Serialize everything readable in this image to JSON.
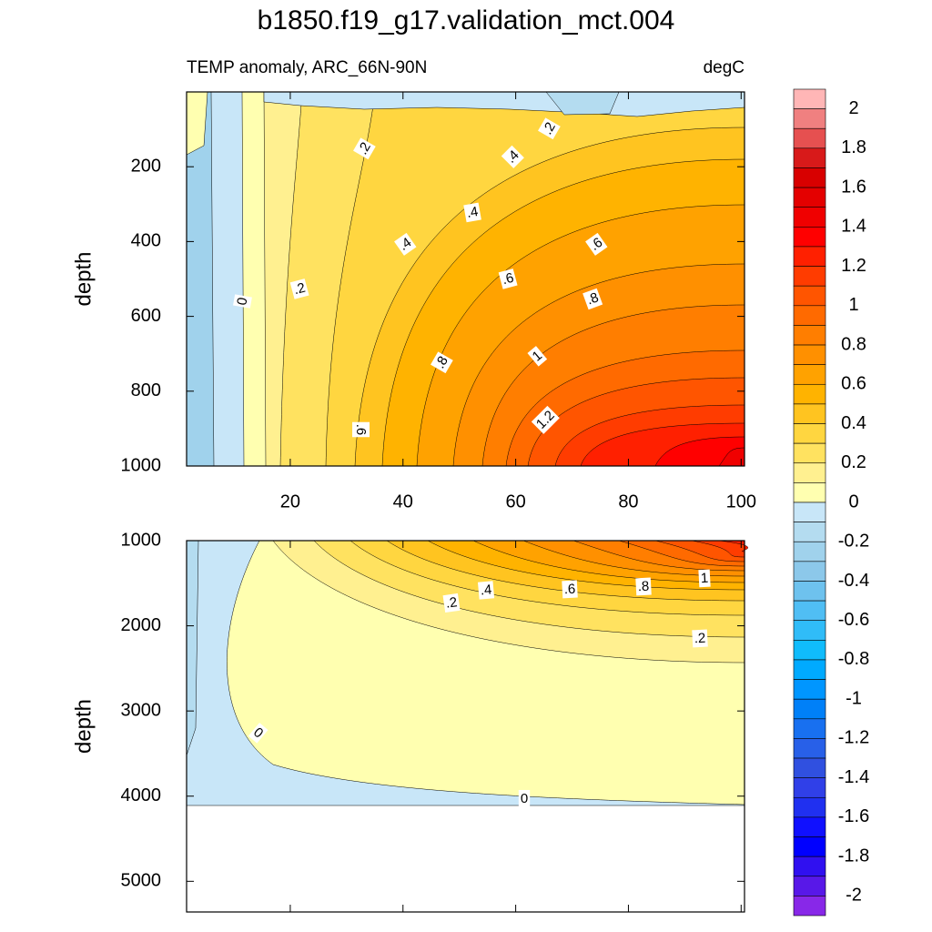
{
  "title": "b1850.f19_g17.validation_mct.004",
  "colorbar": {
    "lim": [
      -2.1,
      2.1
    ],
    "ticks": [
      2,
      1.8,
      1.6,
      1.4,
      1.2,
      1,
      0.8,
      0.6,
      0.4,
      0.2,
      0,
      -0.2,
      -0.4,
      -0.6,
      -0.8,
      -1,
      -1.2,
      -1.4,
      -1.6,
      -1.8,
      -2
    ],
    "colors": [
      "#ffb6b6",
      "#f08080",
      "#e65050",
      "#d81a1a",
      "#d80000",
      "#e40000",
      "#f00000",
      "#ff0000",
      "#ff2000",
      "#ff3c00",
      "#ff5500",
      "#ff6a00",
      "#ff7e00",
      "#ff9000",
      "#ffa200",
      "#ffb300",
      "#ffc420",
      "#ffd640",
      "#ffe260",
      "#fff090",
      "#ffffb0",
      "#c8e6f8",
      "#b4dcf0",
      "#a0d2ec",
      "#8cc8ea",
      "#6ec2ee",
      "#50bef4",
      "#30bcf8",
      "#10bcfc",
      "#00aaff",
      "#0096ff",
      "#0080f8",
      "#1870f0",
      "#2860e8",
      "#3050e0",
      "#3040e8",
      "#2030f0",
      "#1010ff",
      "#0000ff",
      "#3010f0",
      "#5818e8",
      "#8828e8"
    ]
  },
  "chart_data": [
    {
      "type": "contour",
      "subtitle_left": "TEMP anomaly, ARC_66N-90N",
      "subtitle_right": "degC",
      "y_label": "depth",
      "xlim": [
        1.6,
        100.6
      ],
      "xticks": [
        20,
        40,
        60,
        80,
        100
      ],
      "show_xtick_labels": true,
      "ylim": [
        0,
        1000
      ],
      "yticks": [
        200,
        400,
        600,
        800,
        1000
      ],
      "y_reversed": true,
      "contour_labels": [
        {
          "value": 0.2,
          "label": ".2"
        },
        {
          "value": 0.2,
          "label": ".2"
        },
        {
          "value": 0.4,
          "label": ".4"
        },
        {
          "value": 0.4,
          "label": ".4"
        },
        {
          "value": 0.4,
          "label": ".4"
        },
        {
          "value": 0.6,
          "label": ".6"
        },
        {
          "value": 0.2,
          "label": ".2"
        },
        0,
        {
          "value": 0.6,
          "label": ".6"
        },
        {
          "value": 0.8,
          "label": ".8"
        },
        {
          "value": 0.8,
          "label": ".8"
        },
        1,
        1.2,
        {
          "value": 0.6,
          "label": ".6"
        }
      ]
    },
    {
      "type": "contour",
      "y_label": "depth",
      "xlim": [
        1.6,
        100.6
      ],
      "xticks": [
        20,
        40,
        60,
        80,
        100
      ],
      "show_xtick_labels": false,
      "ylim": [
        1000,
        5360
      ],
      "yticks": [
        1000,
        2000,
        3000,
        4000,
        5000
      ],
      "y_reversed": true,
      "contour_labels": [
        {
          "value": 0.4,
          "label": ".4"
        },
        {
          "value": 0.6,
          "label": ".6"
        },
        {
          "value": 0.8,
          "label": ".8"
        },
        1,
        {
          "value": 0.2,
          "label": ".2"
        },
        {
          "value": 0.2,
          "label": ".2"
        },
        0,
        0
      ]
    }
  ]
}
